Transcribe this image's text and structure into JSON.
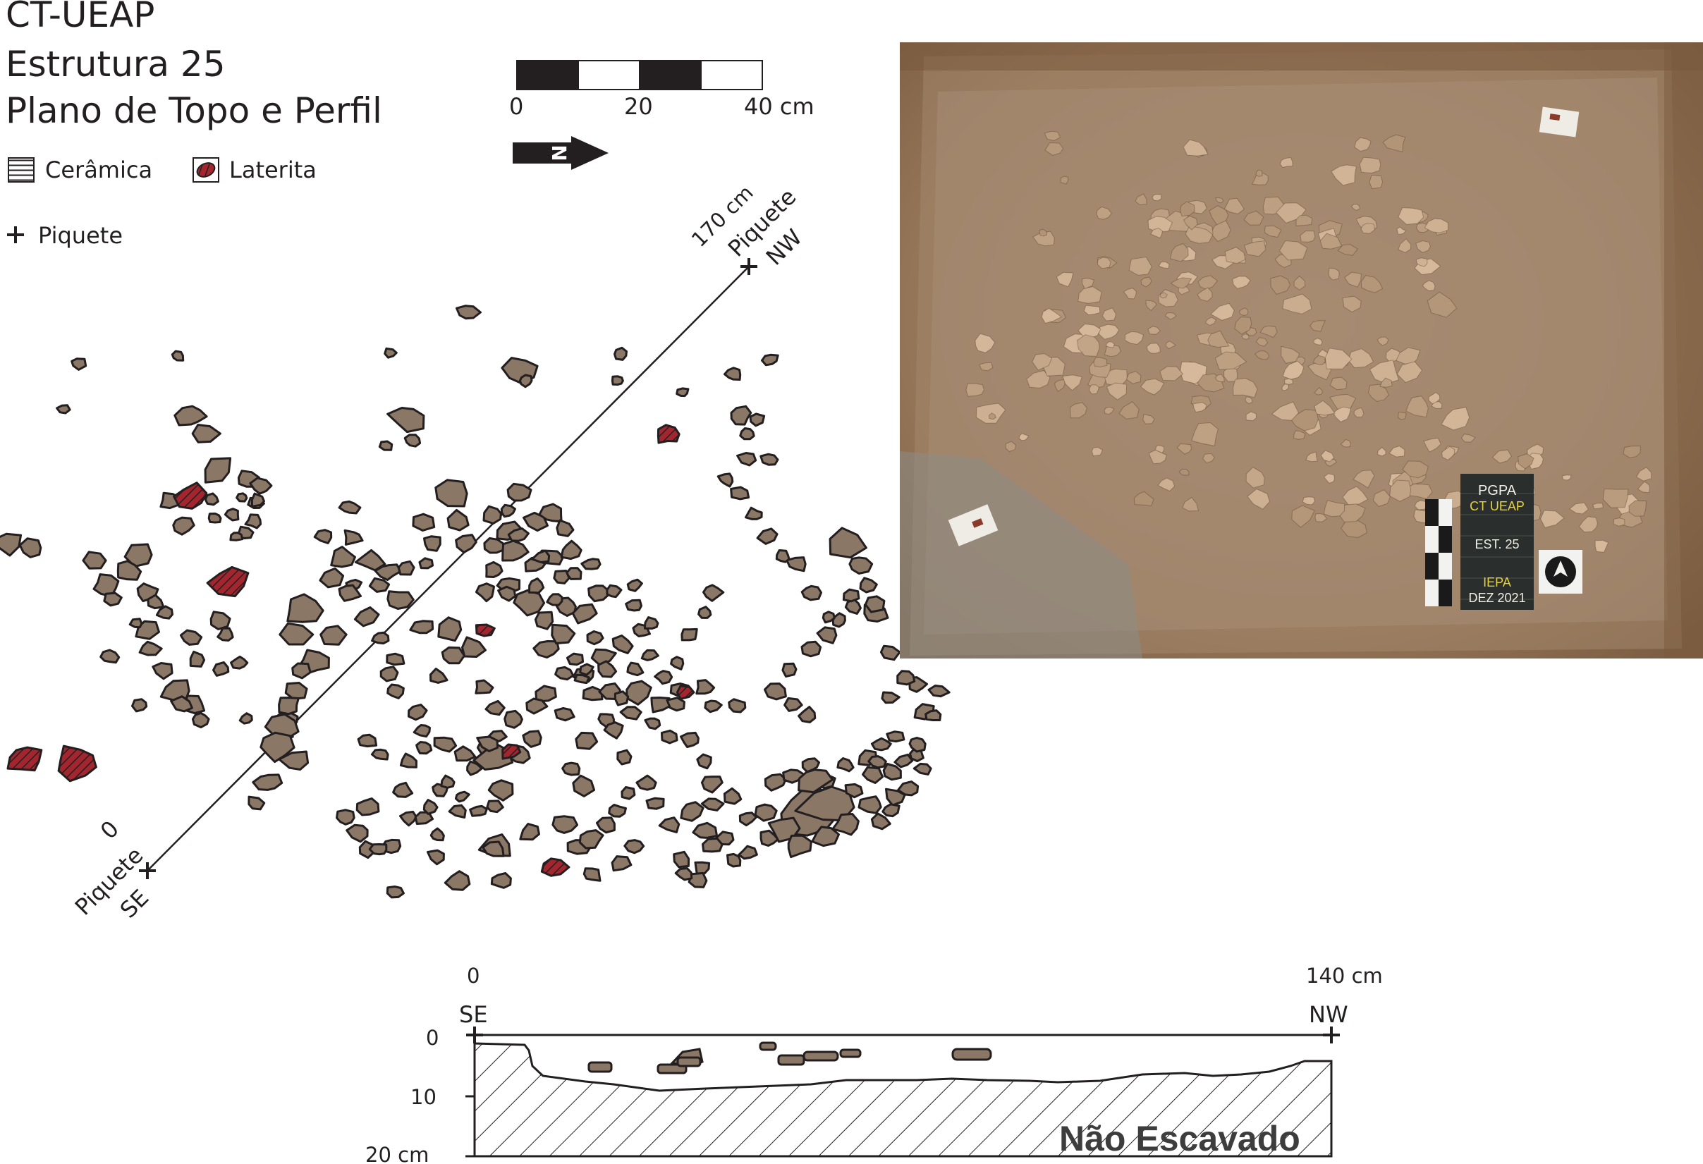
{
  "title": {
    "line1": "CT-UEAP",
    "line2": "Estrutura 25",
    "line3": "Plano de Topo e Perfil"
  },
  "scale_bar": {
    "labels": [
      "0",
      "20",
      "40 cm"
    ]
  },
  "north_arrow": {
    "letter": "N"
  },
  "legend": {
    "ceramica": "Cerâmica",
    "laterita": "Laterita",
    "piquete": "Piquete"
  },
  "colors": {
    "ceramica_fill": "#8b7765",
    "laterita_fill": "#a3262f",
    "outline": "#231f20",
    "photo_soil": "#9a7a5c",
    "placard_bg": "#2a2e2c",
    "placard_white": "#f0f0ea",
    "placard_yellow": "#e8d23a"
  },
  "transect": {
    "start_label": "0",
    "end_label": "170 cm",
    "start_name": "Piquete",
    "start_dir": "SE",
    "end_name": "Piquete",
    "end_dir": "NW"
  },
  "photo": {
    "placard": {
      "line1": "PGPA",
      "line2": "CT UEAP",
      "line3": "EST. 25",
      "line4": "IEPA",
      "line5": "DEZ 2021"
    }
  },
  "profile": {
    "start_label": "0",
    "end_label": "140 cm",
    "left_dir": "SE",
    "right_dir": "NW",
    "depth_labels": [
      "0",
      "10",
      "20 cm"
    ],
    "unexcavated_label": "Não Escavado"
  }
}
